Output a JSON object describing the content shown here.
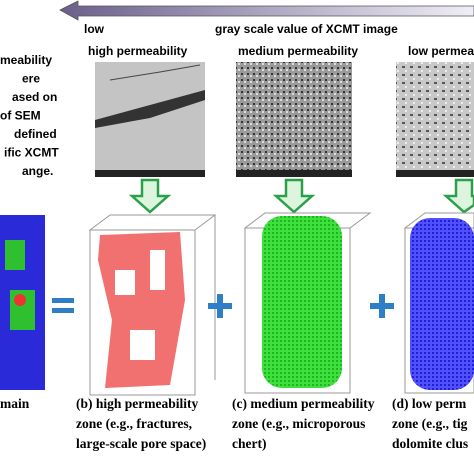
{
  "header": {
    "low_label": "low",
    "axis_label": "gray scale value of XCMT image"
  },
  "side_text": [
    "meability",
    "ere",
    "ased on",
    "of SEM",
    "defined",
    "ific XCMT",
    "ange."
  ],
  "panels": [
    {
      "title": "high permeability",
      "caption": [
        "(b) high permeability",
        "zone (e.g., fractures,",
        "large-scale pore space)"
      ]
    },
    {
      "title": "medium permeability",
      "caption": [
        "(c) medium permeability",
        "zone (e.g., microporous",
        "chert)"
      ]
    },
    {
      "title": "low permea",
      "caption": [
        "(d) low perm",
        "zone (e.g., tig",
        "dolomite clus"
      ]
    }
  ],
  "left_caption": "main"
}
